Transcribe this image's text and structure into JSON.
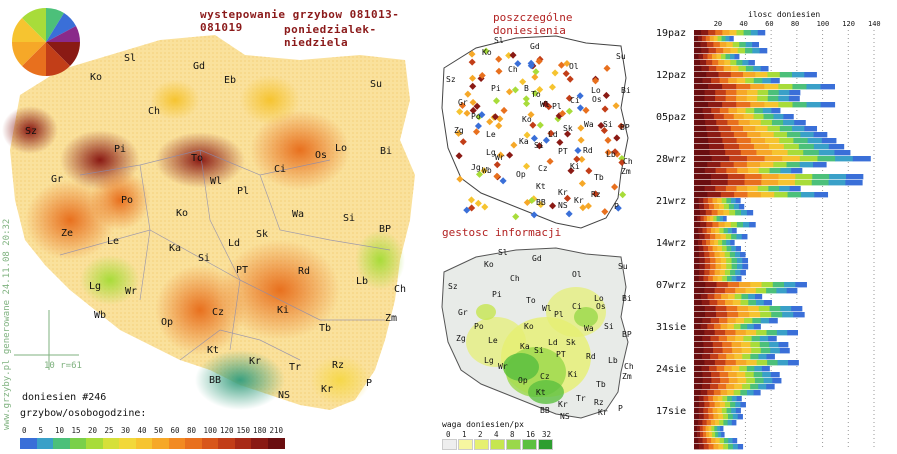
{
  "header": {
    "title_line1": "wystepowanie grzybow 081013-081019",
    "title_line2": "poniedzialek-niedziela"
  },
  "main_map": {
    "cities": [
      "Sl",
      "Gd",
      "Ko",
      "Eb",
      "Su",
      "Ch",
      "Sz",
      "Pi",
      "Bi",
      "To",
      "Ol",
      "Os",
      "Lo",
      "Gr",
      "Wl",
      "Pl",
      "Ci",
      "Po",
      "Ko",
      "Wa",
      "Si",
      "Ze",
      "Le",
      "Ka",
      "Ld",
      "Sk",
      "BP",
      "Lg",
      "Wr",
      "Si",
      "PT",
      "Rd",
      "Lb",
      "Ch",
      "Wb",
      "Op",
      "Cz",
      "Ki",
      "Zm",
      "Tb",
      "Kt",
      "Kr",
      "Tr",
      "Rz",
      "BB",
      "NS",
      "Kr",
      "P"
    ],
    "scale_label": "10 r=61",
    "report_count": "doniesien #246",
    "legend_title": "grzybow/osobogodzine:",
    "legend_ticks": [
      "0",
      "5",
      "10",
      "15",
      "20",
      "25",
      "30",
      "40",
      "50",
      "60",
      "80",
      "100",
      "120",
      "150",
      "180",
      "210"
    ],
    "legend_colors": [
      "#3a6fd8",
      "#3aa0c8",
      "#4cc07a",
      "#7ad04a",
      "#a8dc3a",
      "#d6e03a",
      "#f2d83a",
      "#f6c430",
      "#f6a828",
      "#f28a22",
      "#e8701e",
      "#d8561a",
      "#c23e18",
      "#a82a16",
      "#8a1a14",
      "#6a0e10"
    ],
    "watermark": "www.grzyby.pl generowane 24.11.08 20:32"
  },
  "dots_map": {
    "title": "poszczególne doniesienia",
    "cities": [
      "Sl",
      "Gd",
      "Ko",
      "Su",
      "Sz",
      "Ch",
      "Ol",
      "Pi",
      "B",
      "To",
      "Wl",
      "Lo",
      "Ci",
      "Gr",
      "Pl",
      "Os",
      "Bi",
      "Zg",
      "Le",
      "Ko",
      "Po",
      "Wa",
      "Ld",
      "Sk",
      "Si",
      "BP",
      "Lg",
      "Wr",
      "Ka",
      "Si",
      "PT",
      "Rd",
      "Lb",
      "Ch",
      "Jg",
      "Wb",
      "Op",
      "Cz",
      "Ki",
      "Zm",
      "Kt",
      "Kr",
      "Tb",
      "NS",
      "Kr",
      "Rz",
      "P",
      "BB"
    ]
  },
  "density_map": {
    "title": "gestosc informacji",
    "cities": [
      "Sl",
      "Gd",
      "Ko",
      "Su",
      "Ch",
      "Ol",
      "Sz",
      "Pi",
      "To",
      "Wl",
      "Ci",
      "Lo",
      "Bi",
      "Gr",
      "Pl",
      "Os",
      "Po",
      "Ko",
      "Wa",
      "Le",
      "Ka",
      "Ld",
      "Si",
      "BP",
      "Zg",
      "PT",
      "Rd",
      "Lg",
      "Si",
      "Sk",
      "Lb",
      "Wr",
      "Ch",
      "Op",
      "Cz",
      "Ki",
      "Zm",
      "Kt",
      "Tb",
      "Tr",
      "BB",
      "NS",
      "Kr",
      "Rz",
      "Kr",
      "P"
    ],
    "legend_title": "waga doniesien/px",
    "legend_ticks": [
      "0",
      "1",
      "2",
      "4",
      "8",
      "16",
      "32"
    ],
    "legend_colors": [
      "#eeeeee",
      "#f6f6a0",
      "#e6f070",
      "#c6e650",
      "#9ad84a",
      "#5cc040",
      "#2e9e30"
    ]
  },
  "bar_chart": {
    "axis_title": "ilosc doniesien",
    "axis_ticks": [
      "20",
      "40",
      "60",
      "80",
      "100",
      "120",
      "140"
    ],
    "week_labels": [
      "19paz",
      "12paz",
      "05paz",
      "28wrz",
      "21wrz",
      "14wrz",
      "07wrz",
      "31sie",
      "24sie",
      "17sie"
    ]
  },
  "chart_data": {
    "type": "bar",
    "title": "ilosc doniesien",
    "xlim": [
      0,
      140
    ],
    "categories": [
      "19paz",
      "12paz",
      "05paz",
      "28wrz",
      "21wrz",
      "14wrz",
      "07wrz",
      "31sie",
      "24sie",
      "17sie"
    ],
    "values": [
      58,
      110,
      128,
      138,
      48,
      42,
      88,
      85,
      68,
      38
    ]
  }
}
